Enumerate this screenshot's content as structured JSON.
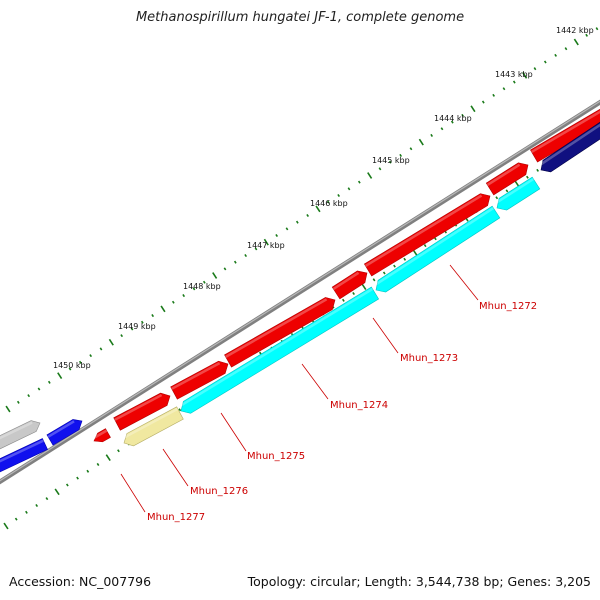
{
  "title": "Methanospirillum hungatei JF-1, complete genome",
  "footer": {
    "accession": "Accession: NC_007796",
    "info": "Topology: circular; Length: 3,544,738 bp; Genes: 3,205"
  },
  "colors": {
    "forward_cds": "#ee0000",
    "reverse_cds": "#00ffff",
    "forward_other": "#1010ee",
    "reverse_other": "#101080",
    "rna": "#f0e8a0",
    "unknown": "#c8c8c8",
    "backbone": "#808080",
    "ticks": "#1a7a1a",
    "label": "#cc0000"
  },
  "ticks": [
    "1442 kbp",
    "1443 kbp",
    "1444 kbp",
    "1445 kbp",
    "1446 kbp",
    "1447 kbp",
    "1448 kbp",
    "1449 kbp",
    "1450 kbp"
  ],
  "genes": [
    "Mhun_1272",
    "Mhun_1273",
    "Mhun_1274",
    "Mhun_1275",
    "Mhun_1276",
    "Mhun_1277"
  ]
}
